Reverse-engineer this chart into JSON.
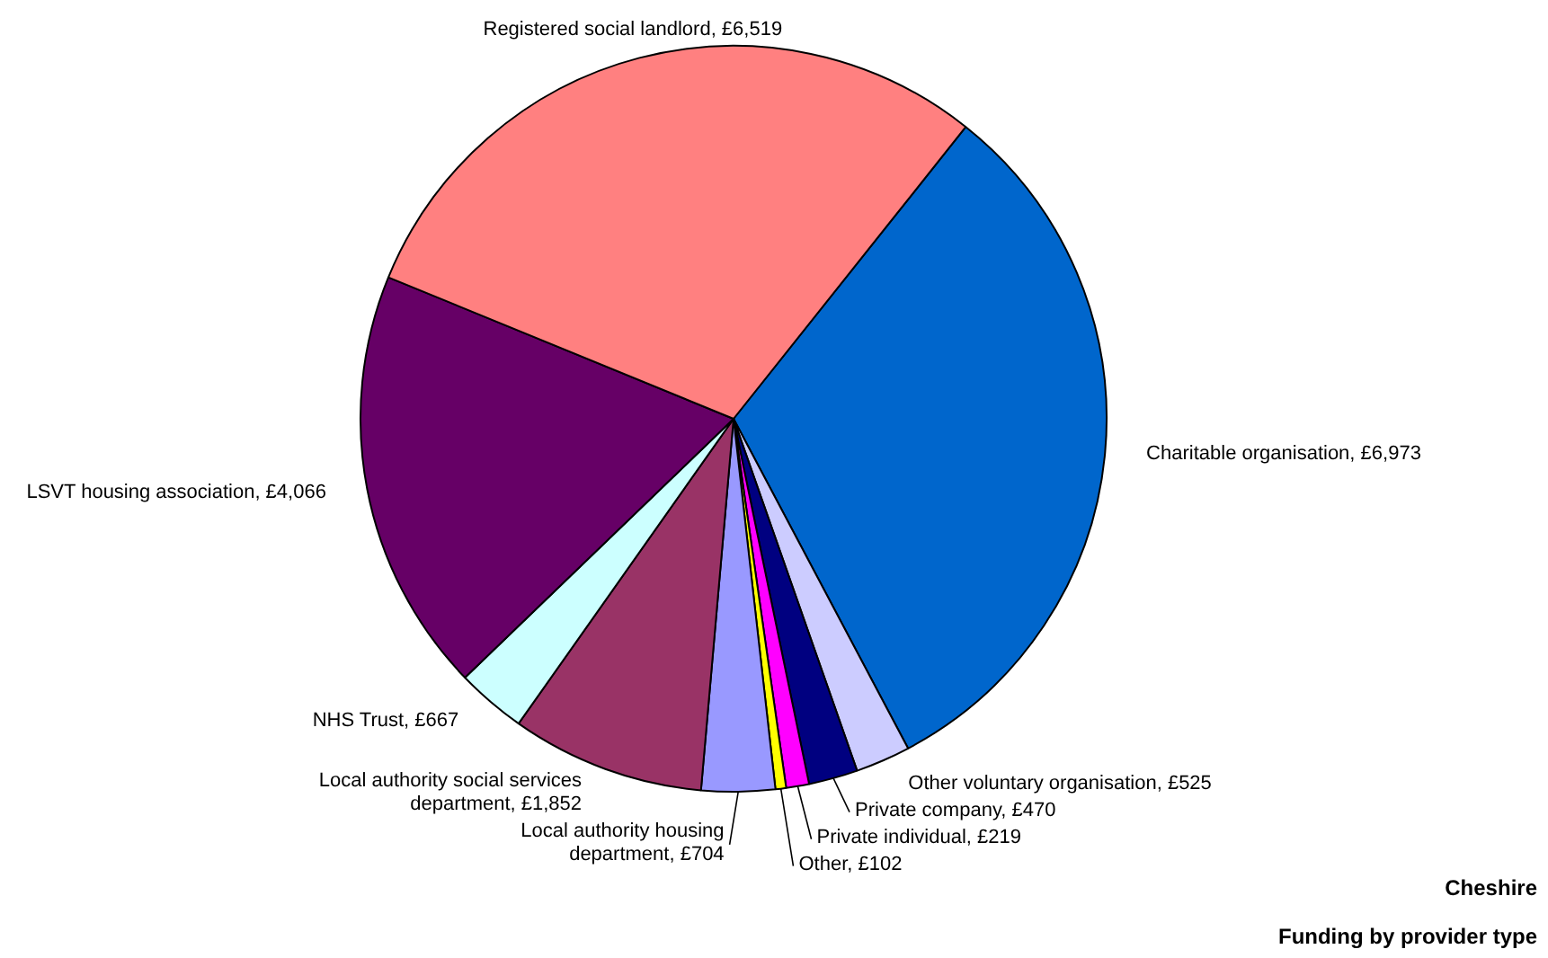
{
  "chart_data": {
    "type": "pie",
    "title": "Cheshire",
    "subtitle": "Funding by provider type",
    "categories": [
      "Charitable organisation",
      "Other voluntary organisation",
      "Private company",
      "Private individual",
      "Other",
      "Local authority housing department",
      "Local authority social services department",
      "NHS Trust",
      "LSVT housing association",
      "Registered social landlord"
    ],
    "values": [
      6973,
      525,
      470,
      219,
      102,
      704,
      1852,
      667,
      4066,
      6519
    ],
    "colors": [
      "#0066cc",
      "#ccccff",
      "#000080",
      "#ff00ff",
      "#ffff00",
      "#9999ff",
      "#993366",
      "#ccffff",
      "#660066",
      "#ff8080"
    ],
    "value_labels": [
      "£6,973",
      "£525",
      "£470",
      "£219",
      "£102",
      "£704",
      "£1,852",
      "£667",
      "£4,066",
      "£6,519"
    ]
  }
}
